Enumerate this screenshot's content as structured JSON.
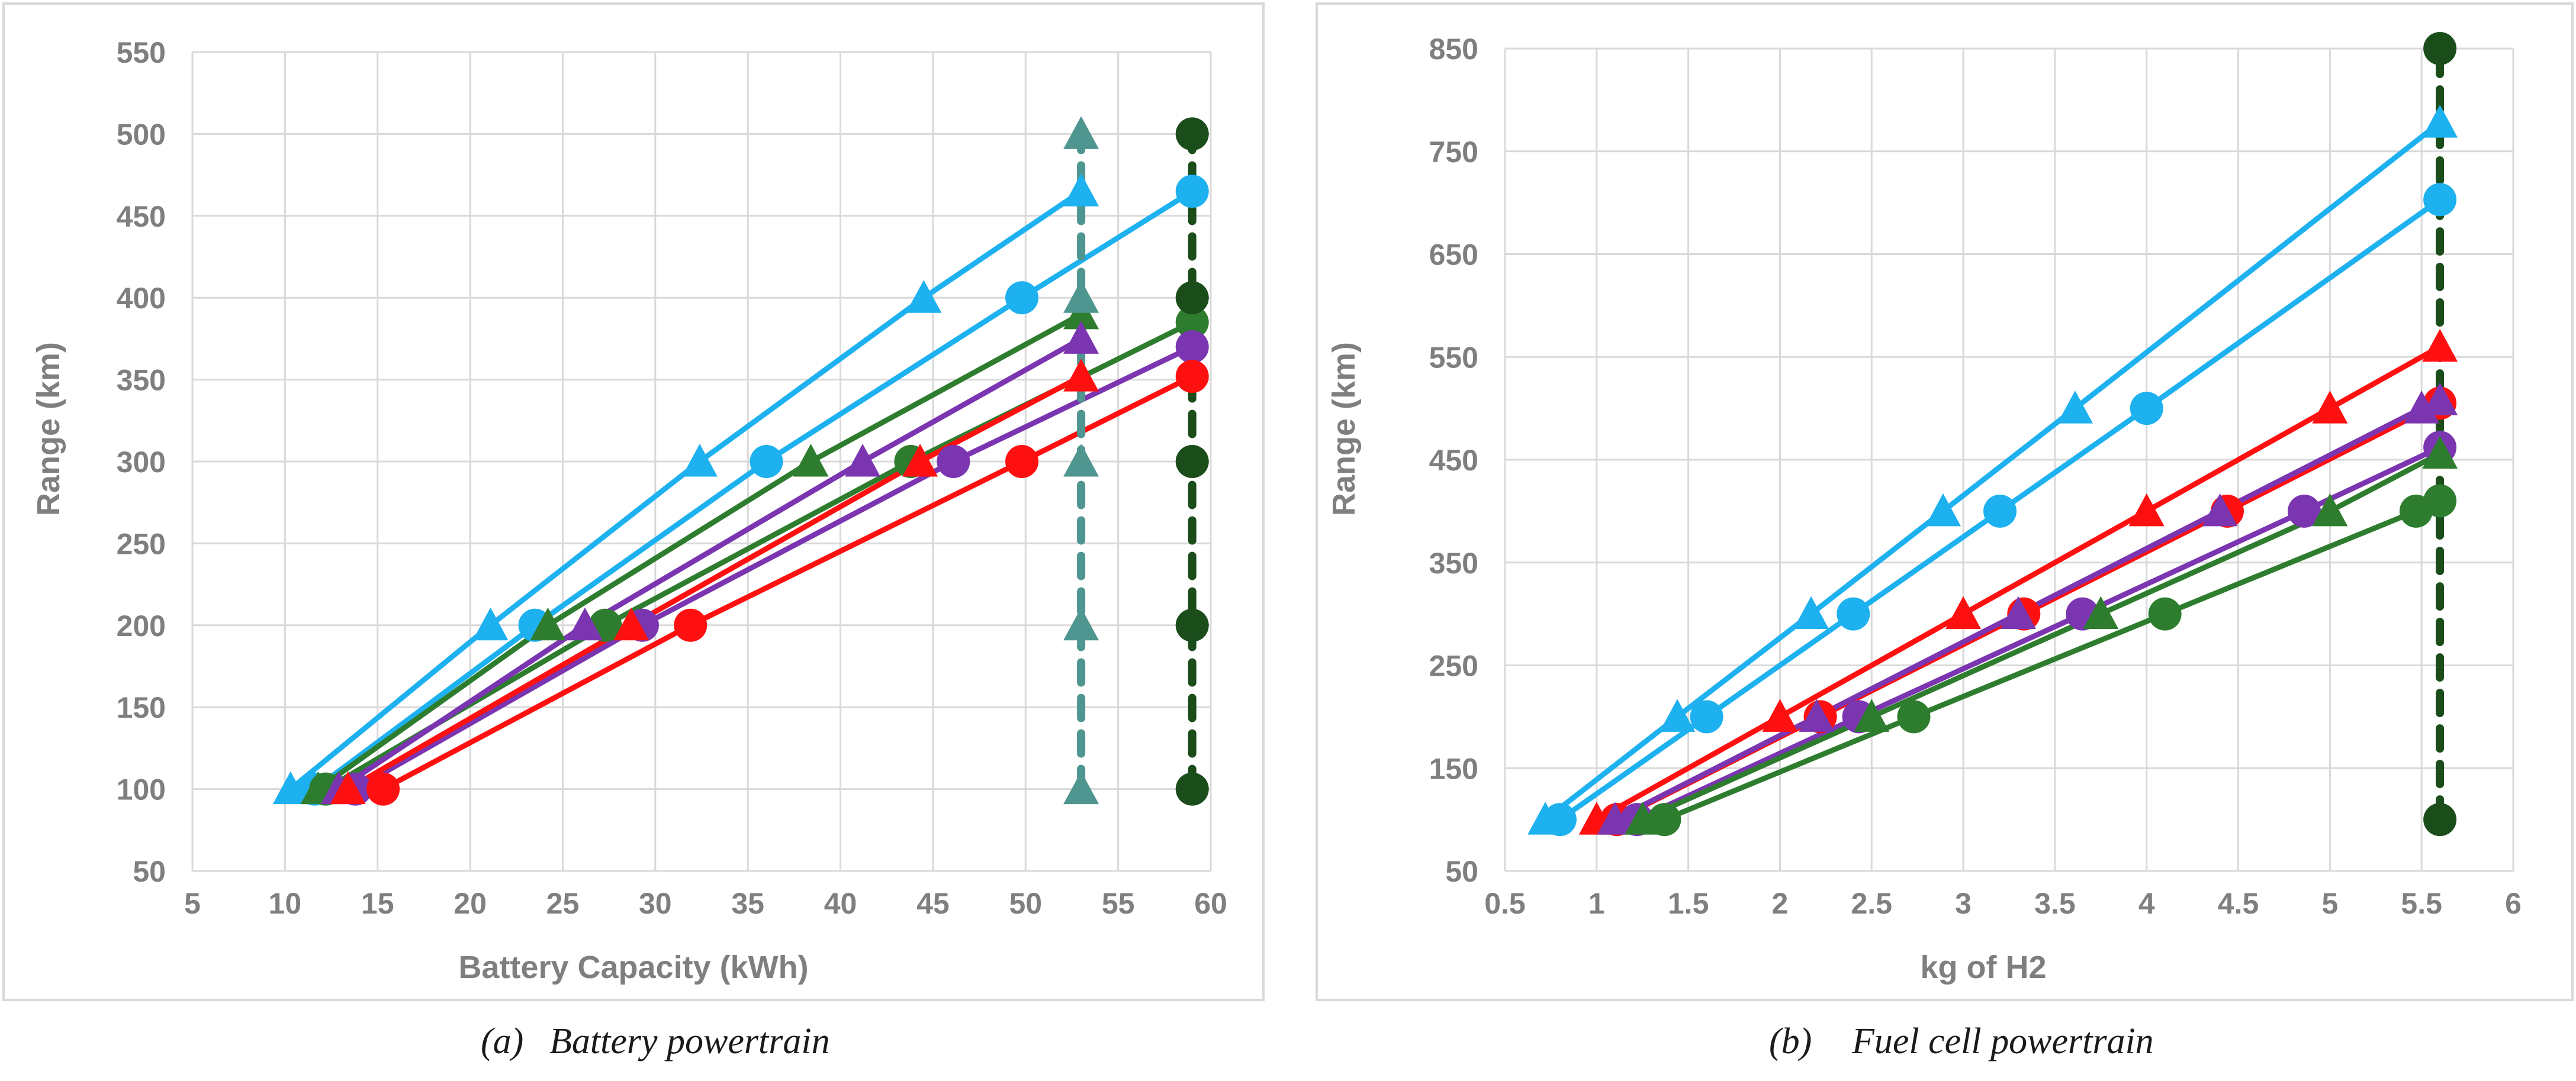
{
  "chart_data": [
    {
      "type": "line",
      "caption_label": "(a)",
      "caption_title": "Battery powertrain",
      "xlabel": "Battery Capacity (kWh)",
      "ylabel": "Range (km)",
      "xlim": [
        5,
        60
      ],
      "ylim": [
        50,
        550
      ],
      "xticks": [
        "5",
        "10",
        "15",
        "20",
        "25",
        "30",
        "35",
        "40",
        "45",
        "50",
        "55",
        "60"
      ],
      "yticks": [
        "50",
        "100",
        "150",
        "200",
        "250",
        "300",
        "350",
        "400",
        "450",
        "500",
        "550"
      ],
      "grid": true,
      "colors": {
        "blue": "#1db1f0",
        "green": "#2e7d2e",
        "purple": "#7b35b1",
        "red": "#ff1010",
        "teal": "#4f9690",
        "darkgreen": "#1b4d1b"
      },
      "series": [
        {
          "color": "blue",
          "marker": "triangle",
          "line": "solid",
          "points": [
            [
              10.3,
              100
            ],
            [
              21.1,
              200
            ],
            [
              32.4,
              300
            ],
            [
              44.5,
              400
            ],
            [
              53,
              465
            ]
          ]
        },
        {
          "color": "blue",
          "marker": "circle",
          "line": "solid",
          "points": [
            [
              11.6,
              100
            ],
            [
              23.5,
              200
            ],
            [
              36,
              300
            ],
            [
              49.8,
              400
            ],
            [
              59,
              465
            ]
          ]
        },
        {
          "color": "green",
          "marker": "triangle",
          "line": "solid",
          "points": [
            [
              11.8,
              100
            ],
            [
              24.2,
              200
            ],
            [
              38.4,
              300
            ],
            [
              53,
              390
            ]
          ]
        },
        {
          "color": "green",
          "marker": "circle",
          "line": "solid",
          "points": [
            [
              12.2,
              100
            ],
            [
              27.3,
              200
            ],
            [
              43.8,
              300
            ],
            [
              59,
              385
            ]
          ]
        },
        {
          "color": "purple",
          "marker": "triangle",
          "line": "solid",
          "points": [
            [
              12.9,
              100
            ],
            [
              26.2,
              200
            ],
            [
              41.2,
              300
            ],
            [
              53,
              375
            ]
          ]
        },
        {
          "color": "purple",
          "marker": "circle",
          "line": "solid",
          "points": [
            [
              13.8,
              100
            ],
            [
              29.3,
              200
            ],
            [
              46.1,
              300
            ],
            [
              59,
              370
            ]
          ]
        },
        {
          "color": "red",
          "marker": "triangle",
          "line": "solid",
          "points": [
            [
              13.4,
              100
            ],
            [
              28.7,
              200
            ],
            [
              44.3,
              300
            ],
            [
              53,
              352
            ]
          ]
        },
        {
          "color": "red",
          "marker": "circle",
          "line": "solid",
          "points": [
            [
              15.3,
              100
            ],
            [
              31.9,
              200
            ],
            [
              49.8,
              300
            ],
            [
              59,
              352
            ]
          ]
        },
        {
          "color": "teal",
          "marker": "triangle",
          "line": "dashed",
          "points": [
            [
              53,
              100
            ],
            [
              53,
              200
            ],
            [
              53,
              300
            ],
            [
              53,
              400
            ],
            [
              53,
              500
            ]
          ]
        },
        {
          "color": "darkgreen",
          "marker": "circle",
          "line": "dashed",
          "points": [
            [
              59,
              100
            ],
            [
              59,
              200
            ],
            [
              59,
              300
            ],
            [
              59,
              400
            ],
            [
              59,
              500
            ]
          ]
        }
      ]
    },
    {
      "type": "line",
      "caption_label": "(b)",
      "caption_title": "Fuel cell powertrain",
      "xlabel": "kg of H2",
      "ylabel": "Range (km)",
      "xlim": [
        0.5,
        6
      ],
      "ylim": [
        50,
        850
      ],
      "xticks": [
        "0.5",
        "1",
        "1.5",
        "2",
        "2.5",
        "3",
        "3.5",
        "4",
        "4.5",
        "5",
        "5.5",
        "6"
      ],
      "yticks": [
        "50",
        "150",
        "250",
        "350",
        "450",
        "550",
        "650",
        "750",
        "850"
      ],
      "grid": true,
      "colors": {
        "blue": "#1db1f0",
        "red": "#ff1010",
        "purple": "#7b35b1",
        "green": "#2e7d2e",
        "darkgreen": "#1b4d1b"
      },
      "series": [
        {
          "color": "blue",
          "marker": "triangle",
          "line": "solid",
          "points": [
            [
              0.72,
              100
            ],
            [
              1.44,
              200
            ],
            [
              2.17,
              300
            ],
            [
              2.89,
              400
            ],
            [
              3.61,
              500
            ],
            [
              5.6,
              778
            ]
          ]
        },
        {
          "color": "blue",
          "marker": "circle",
          "line": "solid",
          "points": [
            [
              0.8,
              100
            ],
            [
              1.6,
              200
            ],
            [
              2.4,
              300
            ],
            [
              3.2,
              400
            ],
            [
              4,
              500
            ],
            [
              5.6,
              703
            ]
          ]
        },
        {
          "color": "red",
          "marker": "triangle",
          "line": "solid",
          "points": [
            [
              1,
              100
            ],
            [
              2,
              200
            ],
            [
              3,
              300
            ],
            [
              4,
              400
            ],
            [
              5,
              500
            ],
            [
              5.6,
              560
            ]
          ]
        },
        {
          "color": "red",
          "marker": "circle",
          "line": "solid",
          "points": [
            [
              1.11,
              100
            ],
            [
              2.22,
              200
            ],
            [
              3.33,
              300
            ],
            [
              4.44,
              400
            ],
            [
              5.6,
              505
            ]
          ]
        },
        {
          "color": "purple",
          "marker": "triangle",
          "line": "solid",
          "points": [
            [
              1.1,
              100
            ],
            [
              2.2,
              200
            ],
            [
              3.3,
              300
            ],
            [
              4.4,
              400
            ],
            [
              5.5,
              500
            ],
            [
              5.6,
              508
            ]
          ]
        },
        {
          "color": "purple",
          "marker": "circle",
          "line": "solid",
          "points": [
            [
              1.22,
              100
            ],
            [
              2.43,
              200
            ],
            [
              3.65,
              300
            ],
            [
              4.86,
              400
            ],
            [
              5.6,
              462
            ]
          ]
        },
        {
          "color": "green",
          "marker": "triangle",
          "line": "solid",
          "points": [
            [
              1.25,
              100
            ],
            [
              2.5,
              200
            ],
            [
              3.75,
              300
            ],
            [
              5,
              400
            ],
            [
              5.6,
              456
            ]
          ]
        },
        {
          "color": "green",
          "marker": "circle",
          "line": "solid",
          "points": [
            [
              1.37,
              100
            ],
            [
              2.73,
              200
            ],
            [
              4.1,
              300
            ],
            [
              5.47,
              400
            ],
            [
              5.6,
              410
            ]
          ]
        },
        {
          "color": "darkgreen",
          "marker": "circle",
          "line": "dashed",
          "points": [
            [
              5.6,
              100
            ],
            [
              5.6,
              850
            ]
          ]
        }
      ]
    }
  ]
}
